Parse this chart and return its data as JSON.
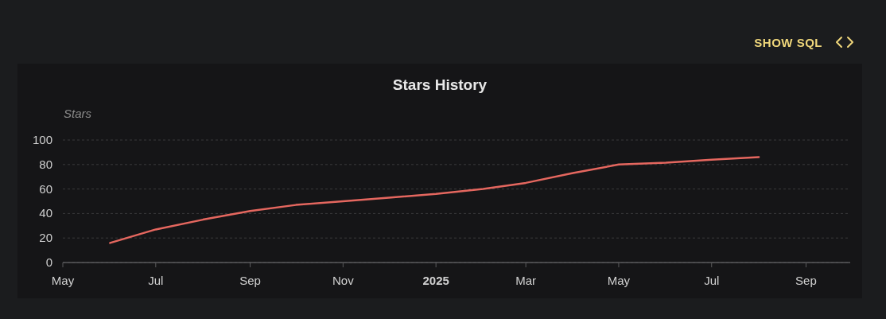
{
  "chart_data": {
    "type": "line",
    "title": "Stars History",
    "ylabel": "Stars",
    "annotations": [
      "SHOW SQL"
    ],
    "x": [
      "2024-06-01",
      "2024-07-01",
      "2024-08-01",
      "2024-09-01",
      "2024-10-01",
      "2024-11-01",
      "2024-12-01",
      "2025-01-01",
      "2025-02-01",
      "2025-03-01",
      "2025-04-01",
      "2025-05-01",
      "2025-06-01",
      "2025-07-01",
      "2025-08-01"
    ],
    "series": [
      {
        "color": "#e5675f",
        "values": [
          16,
          27,
          35,
          42,
          47,
          50,
          53,
          56,
          60,
          65,
          73,
          80,
          81.5,
          84,
          86
        ]
      }
    ],
    "xlim": [
      "2024-05-01",
      "2025-09-30"
    ],
    "xticks": [
      {
        "value": "2024-05-01",
        "label": "May"
      },
      {
        "value": "2024-07-01",
        "label": "Jul"
      },
      {
        "value": "2024-09-01",
        "label": "Sep"
      },
      {
        "value": "2024-11-01",
        "label": "Nov"
      },
      {
        "value": "2025-01-01",
        "label": "2025"
      },
      {
        "value": "2025-03-01",
        "label": "Mar"
      },
      {
        "value": "2025-05-01",
        "label": "May"
      },
      {
        "value": "2025-07-01",
        "label": "Jul"
      },
      {
        "value": "2025-09-01",
        "label": "Sep"
      }
    ],
    "ylim": [
      0,
      100
    ],
    "yticks": [
      0,
      20,
      40,
      60,
      80,
      100
    ],
    "grid": "y",
    "marker": "none",
    "line_style": "solid"
  }
}
